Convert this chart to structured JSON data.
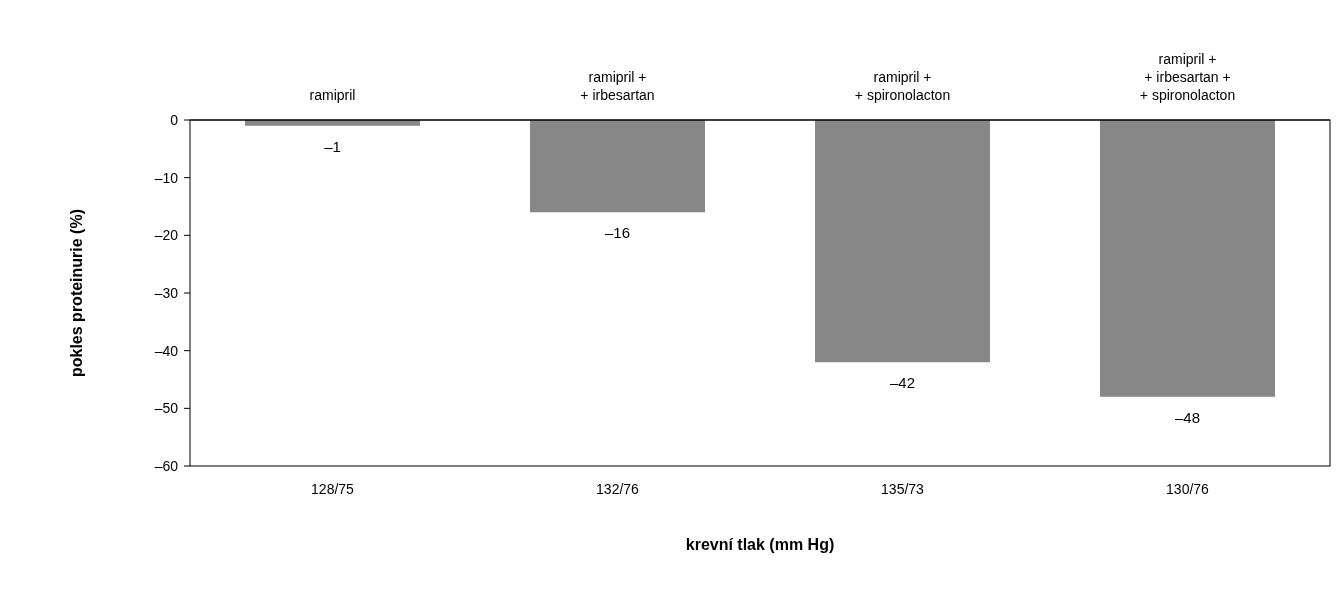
{
  "chart_data": {
    "type": "bar",
    "xlabel": "krevní tlak (mm Hg)",
    "ylabel": "pokles proteinurie (%)",
    "categories": [
      "128/75",
      "132/76",
      "135/73",
      "130/76"
    ],
    "values": [
      -1,
      -16,
      -42,
      -48
    ],
    "color": "#878787",
    "value_labels": [
      "–1",
      "–16",
      "–42",
      "–48"
    ],
    "ylim": [
      -60,
      0
    ],
    "yticks": [
      {
        "value": -60,
        "label": "–60"
      },
      {
        "value": -50,
        "label": "–50"
      },
      {
        "value": -40,
        "label": "–40"
      },
      {
        "value": -30,
        "label": "–30"
      },
      {
        "value": -20,
        "label": "–20"
      },
      {
        "value": -10,
        "label": "–10"
      },
      0
    ],
    "grid": false,
    "annotations": [
      "ramipril",
      "ramipril +\n+ irbesartan",
      "ramipril +\n+ spironolacton",
      "ramipril +\n+ irbesartan +\n+ spironolacton"
    ]
  }
}
